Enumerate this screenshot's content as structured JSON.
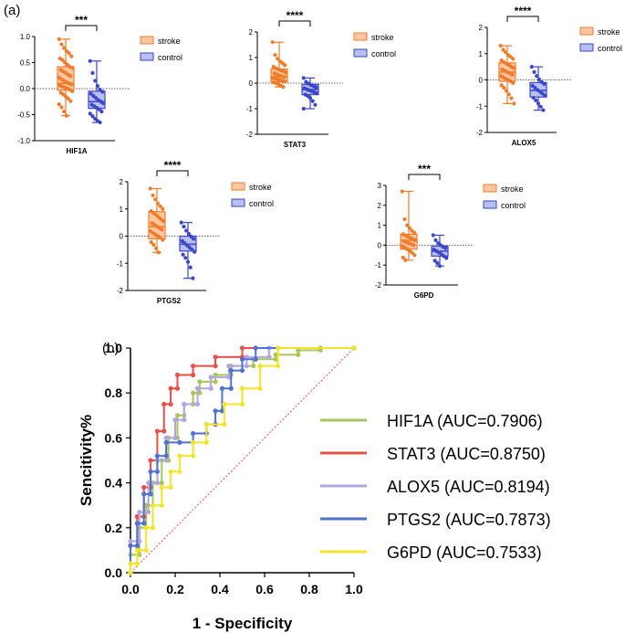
{
  "panels": {
    "a": "(a)",
    "b": "(b)"
  },
  "legend_labels": {
    "stroke": "stroke",
    "control": "control"
  },
  "colors": {
    "stroke": "#f07c2a",
    "control": "#3a47c8",
    "stroke_fill": "#f9c7a2",
    "control_fill": "#b9bff0"
  },
  "chart_data": [
    {
      "type": "box",
      "xlabel": "HIF1A",
      "significance": "***",
      "ylim": [
        -1.0,
        1.0
      ],
      "yticks": [
        "1.0",
        "0.5",
        "0.0",
        "-0.5",
        "-1.0"
      ],
      "groups": [
        {
          "name": "stroke",
          "min": -0.52,
          "q1": -0.03,
          "median": 0.1,
          "q3": 0.42,
          "max": 0.95,
          "points": [
            0.95,
            0.85,
            0.78,
            0.72,
            0.68,
            0.62,
            0.58,
            0.55,
            0.5,
            0.46,
            0.42,
            0.4,
            0.36,
            0.33,
            0.3,
            0.27,
            0.24,
            0.21,
            0.18,
            0.15,
            0.12,
            0.1,
            0.08,
            0.06,
            0.04,
            0.02,
            0.0,
            -0.02,
            -0.05,
            -0.08,
            -0.11,
            -0.15,
            -0.19,
            -0.24,
            -0.3,
            -0.36,
            -0.44,
            -0.52
          ]
        },
        {
          "name": "control",
          "min": -0.65,
          "q1": -0.38,
          "median": -0.25,
          "q3": -0.05,
          "max": 0.53,
          "points": [
            0.53,
            0.3,
            0.15,
            0.05,
            -0.02,
            -0.06,
            -0.1,
            -0.14,
            -0.18,
            -0.22,
            -0.25,
            -0.28,
            -0.31,
            -0.34,
            -0.37,
            -0.4,
            -0.44,
            -0.48,
            -0.53,
            -0.58,
            -0.62,
            -0.65
          ]
        }
      ]
    },
    {
      "type": "box",
      "xlabel": "STAT3",
      "significance": "****",
      "ylim": [
        -2,
        2
      ],
      "yticks": [
        "2",
        "1",
        "0",
        "-1",
        "-2"
      ],
      "groups": [
        {
          "name": "stroke",
          "min": -0.15,
          "q1": 0.05,
          "median": 0.25,
          "q3": 0.55,
          "max": 1.6,
          "points": [
            1.6,
            1.1,
            0.95,
            0.85,
            0.78,
            0.7,
            0.64,
            0.58,
            0.54,
            0.5,
            0.46,
            0.42,
            0.38,
            0.34,
            0.3,
            0.27,
            0.24,
            0.21,
            0.18,
            0.15,
            0.12,
            0.09,
            0.06,
            0.03,
            0.0,
            -0.05,
            -0.1,
            -0.15
          ]
        },
        {
          "name": "control",
          "min": -1.0,
          "q1": -0.45,
          "median": -0.25,
          "q3": -0.05,
          "max": 0.2,
          "points": [
            0.2,
            0.05,
            -0.02,
            -0.08,
            -0.12,
            -0.16,
            -0.2,
            -0.24,
            -0.28,
            -0.32,
            -0.36,
            -0.4,
            -0.45,
            -0.5,
            -0.58,
            -0.7,
            -0.85,
            -1.0
          ]
        }
      ]
    },
    {
      "type": "box",
      "xlabel": "ALOX5",
      "significance": "****",
      "ylim": [
        -2,
        2
      ],
      "yticks": [
        "2",
        "1",
        "0",
        "-1",
        "-2"
      ],
      "groups": [
        {
          "name": "stroke",
          "min": -0.9,
          "q1": -0.05,
          "median": 0.3,
          "q3": 0.65,
          "max": 1.3,
          "points": [
            1.3,
            1.15,
            1.05,
            0.95,
            0.88,
            0.8,
            0.74,
            0.68,
            0.62,
            0.56,
            0.5,
            0.45,
            0.4,
            0.35,
            0.3,
            0.25,
            0.2,
            0.15,
            0.1,
            0.05,
            0.0,
            -0.05,
            -0.12,
            -0.2,
            -0.3,
            -0.42,
            -0.55,
            -0.7,
            -0.9
          ]
        },
        {
          "name": "control",
          "min": -1.15,
          "q1": -0.65,
          "median": -0.4,
          "q3": -0.1,
          "max": 0.5,
          "points": [
            0.5,
            0.3,
            0.15,
            0.02,
            -0.08,
            -0.15,
            -0.22,
            -0.3,
            -0.38,
            -0.45,
            -0.52,
            -0.6,
            -0.68,
            -0.78,
            -0.9,
            -1.02,
            -1.15
          ]
        }
      ]
    },
    {
      "type": "box",
      "xlabel": "PTGS2",
      "significance": "****",
      "ylim": [
        -2,
        2
      ],
      "yticks": [
        "2",
        "1",
        "0",
        "-1",
        "-2"
      ],
      "groups": [
        {
          "name": "stroke",
          "min": -0.6,
          "q1": -0.1,
          "median": 0.35,
          "q3": 0.9,
          "max": 1.75,
          "points": [
            1.75,
            1.5,
            1.35,
            1.2,
            1.1,
            1.0,
            0.92,
            0.85,
            0.78,
            0.7,
            0.62,
            0.55,
            0.48,
            0.42,
            0.36,
            0.3,
            0.24,
            0.18,
            0.12,
            0.06,
            0.0,
            -0.06,
            -0.14,
            -0.22,
            -0.32,
            -0.45,
            -0.6
          ]
        },
        {
          "name": "control",
          "min": -1.55,
          "q1": -0.55,
          "median": -0.3,
          "q3": 0.0,
          "max": 0.5,
          "points": [
            0.5,
            0.35,
            0.2,
            0.08,
            -0.02,
            -0.1,
            -0.18,
            -0.26,
            -0.34,
            -0.42,
            -0.5,
            -0.58,
            -0.68,
            -0.8,
            -0.95,
            -1.15,
            -1.55
          ]
        }
      ]
    },
    {
      "type": "box",
      "xlabel": "G6PD",
      "significance": "***",
      "ylim": [
        -2,
        3
      ],
      "yticks": [
        "3",
        "2",
        "1",
        "0",
        "-1",
        "-2"
      ],
      "groups": [
        {
          "name": "stroke",
          "min": -0.75,
          "q1": -0.2,
          "median": 0.25,
          "q3": 0.55,
          "max": 2.7,
          "points": [
            2.7,
            1.3,
            1.0,
            0.85,
            0.72,
            0.62,
            0.55,
            0.48,
            0.42,
            0.36,
            0.3,
            0.25,
            0.2,
            0.15,
            0.1,
            0.05,
            0.0,
            -0.06,
            -0.12,
            -0.2,
            -0.28,
            -0.38,
            -0.5,
            -0.62,
            -0.75
          ]
        },
        {
          "name": "control",
          "min": -1.05,
          "q1": -0.55,
          "median": -0.3,
          "q3": -0.05,
          "max": 0.5,
          "points": [
            0.5,
            0.25,
            0.1,
            0.0,
            -0.08,
            -0.15,
            -0.22,
            -0.3,
            -0.38,
            -0.46,
            -0.55,
            -0.65,
            -0.78,
            -0.9,
            -1.05
          ]
        }
      ]
    },
    {
      "type": "line",
      "xlabel": "1 - Specificity",
      "ylabel": "Sencitivity%",
      "xlim": [
        0.0,
        1.0
      ],
      "ylim": [
        0.0,
        1.0
      ],
      "xticks": [
        "0.0",
        "0.2",
        "0.4",
        "0.6",
        "0.8",
        "1.0"
      ],
      "yticks": [
        "1.0",
        "0.8",
        "0.6",
        "0.4",
        "0.2",
        "0.0"
      ],
      "reference_line": "diagonal",
      "series": [
        {
          "name": "HIF1A (AUC=0.7906)",
          "color": "#a6c85a",
          "x": [
            0,
            0,
            0.04,
            0.04,
            0.07,
            0.07,
            0.1,
            0.1,
            0.14,
            0.14,
            0.17,
            0.17,
            0.21,
            0.21,
            0.24,
            0.24,
            0.28,
            0.28,
            0.31,
            0.31,
            0.38,
            0.38,
            0.45,
            0.45,
            0.55,
            0.55,
            0.65,
            0.65,
            0.75,
            0.75,
            0.85,
            0.85,
            1.0
          ],
          "y": [
            0,
            0.08,
            0.08,
            0.2,
            0.2,
            0.3,
            0.3,
            0.4,
            0.4,
            0.5,
            0.5,
            0.6,
            0.6,
            0.7,
            0.7,
            0.75,
            0.75,
            0.8,
            0.8,
            0.85,
            0.85,
            0.88,
            0.88,
            0.92,
            0.92,
            0.95,
            0.95,
            0.97,
            0.97,
            0.99,
            0.99,
            1.0,
            1.0
          ]
        },
        {
          "name": "STAT3 (AUC=0.8750)",
          "color": "#e8504a",
          "x": [
            0,
            0,
            0.03,
            0.03,
            0.06,
            0.06,
            0.09,
            0.09,
            0.12,
            0.12,
            0.15,
            0.15,
            0.18,
            0.18,
            0.21,
            0.21,
            0.28,
            0.28,
            0.38,
            0.38,
            0.5,
            0.5,
            1.0
          ],
          "y": [
            0,
            0.12,
            0.12,
            0.25,
            0.25,
            0.38,
            0.38,
            0.5,
            0.5,
            0.63,
            0.63,
            0.75,
            0.75,
            0.82,
            0.82,
            0.88,
            0.88,
            0.92,
            0.92,
            0.96,
            0.96,
            1.0,
            1.0
          ]
        },
        {
          "name": "ALOX5 (AUC=0.8194)",
          "color": "#b4a4e2",
          "x": [
            0,
            0,
            0.04,
            0.04,
            0.08,
            0.08,
            0.12,
            0.12,
            0.16,
            0.16,
            0.2,
            0.2,
            0.24,
            0.24,
            0.3,
            0.3,
            0.36,
            0.36,
            0.44,
            0.44,
            0.52,
            0.52,
            0.62,
            0.62,
            1.0
          ],
          "y": [
            0,
            0.14,
            0.14,
            0.27,
            0.27,
            0.4,
            0.4,
            0.5,
            0.5,
            0.6,
            0.6,
            0.68,
            0.68,
            0.75,
            0.75,
            0.82,
            0.82,
            0.87,
            0.87,
            0.92,
            0.92,
            0.96,
            0.96,
            1.0,
            1.0
          ]
        },
        {
          "name": "PTGS2 (AUC=0.7873)",
          "color": "#4f72d0",
          "x": [
            0,
            0,
            0.03,
            0.03,
            0.06,
            0.06,
            0.09,
            0.09,
            0.12,
            0.12,
            0.16,
            0.16,
            0.22,
            0.22,
            0.28,
            0.28,
            0.34,
            0.34,
            0.38,
            0.38,
            0.41,
            0.41,
            0.45,
            0.45,
            0.5,
            0.5,
            0.56,
            0.56,
            1.0
          ],
          "y": [
            0,
            0.12,
            0.12,
            0.22,
            0.22,
            0.35,
            0.35,
            0.45,
            0.45,
            0.52,
            0.52,
            0.58,
            0.58,
            0.58,
            0.58,
            0.62,
            0.62,
            0.66,
            0.66,
            0.72,
            0.72,
            0.82,
            0.82,
            0.9,
            0.9,
            0.95,
            0.95,
            1.0,
            1.0
          ]
        },
        {
          "name": "G6PD (AUC=0.7533)",
          "color": "#f2e62c",
          "x": [
            0,
            0,
            0.03,
            0.03,
            0.07,
            0.07,
            0.1,
            0.1,
            0.14,
            0.14,
            0.18,
            0.18,
            0.22,
            0.22,
            0.28,
            0.28,
            0.34,
            0.34,
            0.42,
            0.42,
            0.5,
            0.5,
            0.58,
            0.58,
            0.66,
            0.66,
            1.0
          ],
          "y": [
            0,
            0.04,
            0.04,
            0.1,
            0.1,
            0.2,
            0.2,
            0.3,
            0.3,
            0.38,
            0.38,
            0.45,
            0.45,
            0.52,
            0.52,
            0.58,
            0.58,
            0.66,
            0.66,
            0.75,
            0.75,
            0.82,
            0.82,
            0.92,
            0.92,
            1.0,
            1.0
          ]
        }
      ]
    }
  ]
}
